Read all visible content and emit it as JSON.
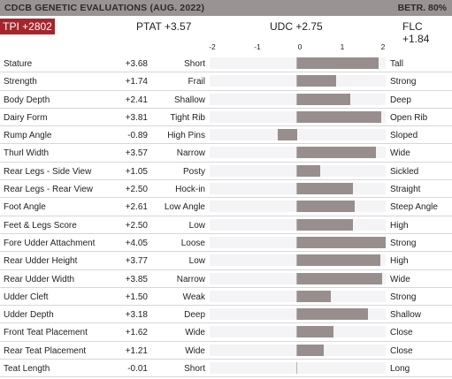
{
  "header": {
    "title": "CDCB GENETIC EVALUATIONS (AUG. 2022)",
    "reliability": "BETR. 80%"
  },
  "summary": {
    "tpi": "TPI +2802",
    "ptat": "PTAT +3.57",
    "udc": "UDC +2.75",
    "flc": "FLC +1.84"
  },
  "axis": {
    "ticks": [
      "-2",
      "-1",
      "0",
      "1",
      "2"
    ],
    "min": -2,
    "max": 2
  },
  "colors": {
    "bar": "#988e8e",
    "tpi_badge": "#a4262c",
    "header": "#9a9393"
  },
  "traits": [
    {
      "name": "Stature",
      "value_text": "+3.68",
      "value": 3.68,
      "low": "Short",
      "high": "Tall"
    },
    {
      "name": "Strength",
      "value_text": "+1.74",
      "value": 1.74,
      "low": "Frail",
      "high": "Strong"
    },
    {
      "name": "Body Depth",
      "value_text": "+2.41",
      "value": 2.41,
      "low": "Shallow",
      "high": "Deep"
    },
    {
      "name": "Dairy Form",
      "value_text": "+3.81",
      "value": 3.81,
      "low": "Tight Rib",
      "high": "Open Rib"
    },
    {
      "name": "Rump Angle",
      "value_text": "-0.89",
      "value": -0.89,
      "low": "High Pins",
      "high": "Sloped"
    },
    {
      "name": "Thurl Width",
      "value_text": "+3.57",
      "value": 3.57,
      "low": "Narrow",
      "high": "Wide"
    },
    {
      "name": "Rear Legs - Side View",
      "value_text": "+1.05",
      "value": 1.05,
      "low": "Posty",
      "high": "Sickled"
    },
    {
      "name": "Rear Legs - Rear View",
      "value_text": "+2.50",
      "value": 2.5,
      "low": "Hock-in",
      "high": "Straight"
    },
    {
      "name": "Foot Angle",
      "value_text": "+2.61",
      "value": 2.61,
      "low": "Low Angle",
      "high": "Steep Angle"
    },
    {
      "name": "Feet & Legs Score",
      "value_text": "+2.50",
      "value": 2.5,
      "low": "Low",
      "high": "High"
    },
    {
      "name": "Fore Udder Attachment",
      "value_text": "+4.05",
      "value": 4.05,
      "low": "Loose",
      "high": "Strong"
    },
    {
      "name": "Rear Udder Height",
      "value_text": "+3.77",
      "value": 3.77,
      "low": "Low",
      "high": "High"
    },
    {
      "name": "Rear Udder Width",
      "value_text": "+3.85",
      "value": 3.85,
      "low": "Narrow",
      "high": "Wide"
    },
    {
      "name": "Udder Cleft",
      "value_text": "+1.50",
      "value": 1.5,
      "low": "Weak",
      "high": "Strong"
    },
    {
      "name": "Udder Depth",
      "value_text": "+3.18",
      "value": 3.18,
      "low": "Deep",
      "high": "Shallow"
    },
    {
      "name": "Front Teat Placement",
      "value_text": "+1.62",
      "value": 1.62,
      "low": "Wide",
      "high": "Close"
    },
    {
      "name": "Rear Teat Placement",
      "value_text": "+1.21",
      "value": 1.21,
      "low": "Wide",
      "high": "Close"
    },
    {
      "name": "Teat Length",
      "value_text": "-0.01",
      "value": -0.01,
      "low": "Short",
      "high": "Long"
    }
  ]
}
